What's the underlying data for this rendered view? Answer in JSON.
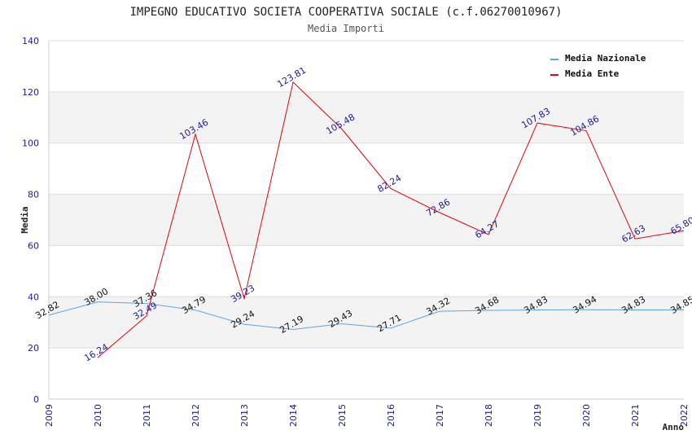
{
  "chart_data": {
    "type": "line",
    "title": "IMPEGNO EDUCATIVO SOCIETA COOPERATIVA SOCIALE (c.f.06270010967)",
    "subtitle": "Media Importi",
    "xlabel": "Anno",
    "ylabel": "Media",
    "ylim": [
      0,
      140
    ],
    "yticks": [
      0,
      20,
      40,
      60,
      80,
      100,
      120,
      140
    ],
    "grid": true,
    "legend_position": "top-right",
    "x": [
      "2009",
      "2010",
      "2011",
      "2012",
      "2013",
      "2014",
      "2015",
      "2016",
      "2017",
      "2018",
      "2019",
      "2020",
      "2021",
      "2022"
    ],
    "series": [
      {
        "name": "Media Nazionale",
        "color": "#5aa5e6",
        "label_color": "#111111",
        "values": [
          32.82,
          38.0,
          37.36,
          34.79,
          29.24,
          27.19,
          29.43,
          27.71,
          34.32,
          34.68,
          34.83,
          34.94,
          34.83,
          34.85
        ],
        "labels": [
          "32.82",
          "38.00",
          "37.36",
          "34.79",
          "29.24",
          "27.19",
          "29.43",
          "27.71",
          "34.32",
          "34.68",
          "34.83",
          "34.94",
          "34.83",
          "34.85"
        ]
      },
      {
        "name": "Media Ente",
        "color": "#e8000b",
        "label_color": "#1a1aa0",
        "values": [
          null,
          16.24,
          32.49,
          103.46,
          39.23,
          123.81,
          105.48,
          82.24,
          72.86,
          64.27,
          107.83,
          104.86,
          62.63,
          65.8
        ],
        "labels": [
          null,
          "16.24",
          "32.49",
          "103.46",
          "39.23",
          "123.81",
          "105.48",
          "82.24",
          "72.86",
          "64.27",
          "107.83",
          "104.86",
          "62.63",
          "65.80"
        ]
      }
    ]
  }
}
